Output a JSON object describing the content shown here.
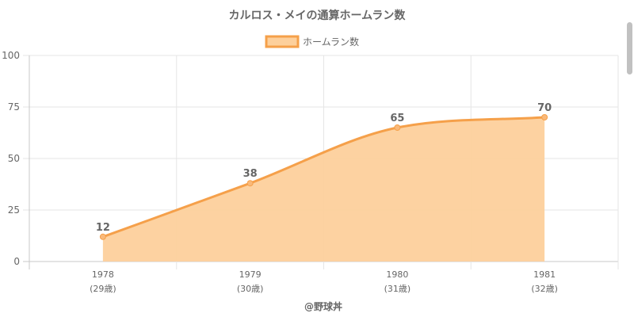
{
  "chart_data": {
    "type": "area",
    "title": "カルロス・メイの通算ホームラン数",
    "legend": {
      "label": "ホームラン数",
      "placement": "top-center"
    },
    "categories": [
      "1978",
      "1979",
      "1980",
      "1981"
    ],
    "sublabels": [
      "(29歳)",
      "(30歳)",
      "(31歳)",
      "(32歳)"
    ],
    "series": [
      {
        "name": "ホームラン数",
        "values": [
          12,
          38,
          65,
          70
        ]
      }
    ],
    "data_labels": [
      "12",
      "38",
      "65",
      "70"
    ],
    "ylim": [
      0,
      100
    ],
    "yticks": [
      "0",
      "25",
      "50",
      "75",
      "100"
    ],
    "grid": true,
    "xlabel": "@野球丼",
    "ylabel": "",
    "colors": {
      "line": "#f5a04a",
      "fill": "#fdd09c",
      "point": "#f9b97a",
      "text": "#666666",
      "grid": "#e5e5e5"
    }
  }
}
